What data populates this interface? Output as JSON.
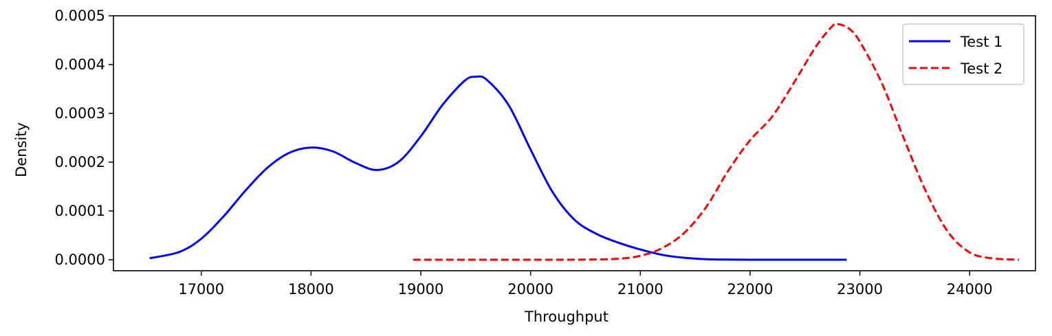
{
  "chart_data": {
    "type": "line",
    "xlabel": "Throughput",
    "ylabel": "Density",
    "xlim": [
      16200,
      24600
    ],
    "ylim": [
      -2.25e-05,
      0.0005
    ],
    "xticks": [
      17000,
      18000,
      19000,
      20000,
      21000,
      22000,
      23000,
      24000
    ],
    "xtick_labels": [
      "17000",
      "18000",
      "19000",
      "20000",
      "21000",
      "22000",
      "23000",
      "24000"
    ],
    "yticks": [
      0.0,
      0.0001,
      0.0002,
      0.0003,
      0.0004,
      0.0005
    ],
    "ytick_labels": [
      "0.0000",
      "0.0001",
      "0.0002",
      "0.0003",
      "0.0004",
      "0.0005"
    ],
    "grid": false,
    "legend_position": "top-right",
    "series": [
      {
        "name": "Test 1",
        "color": "#0000ff",
        "style": "solid",
        "x": [
          16530,
          16800,
          17000,
          17200,
          17400,
          17600,
          17800,
          18000,
          18200,
          18400,
          18600,
          18800,
          19000,
          19200,
          19400,
          19500,
          19600,
          19800,
          20000,
          20200,
          20400,
          20600,
          20800,
          21000,
          21200,
          21400,
          21600,
          21800,
          22000,
          22400,
          22880
        ],
        "y": [
          3e-06,
          1.6e-05,
          4.3e-05,
          8.8e-05,
          0.000141,
          0.000188,
          0.000219,
          0.00023,
          0.000222,
          0.000199,
          0.000184,
          0.000201,
          0.000253,
          0.000318,
          0.000367,
          0.000375,
          0.000369,
          0.000317,
          0.000226,
          0.000139,
          8.2e-05,
          5.3e-05,
          3.5e-05,
          2.1e-05,
          1e-05,
          4e-06,
          1e-06,
          3e-07,
          0.0,
          0.0,
          0.0
        ]
      },
      {
        "name": "Test 2",
        "color": "#ff0000",
        "style": "dashed",
        "x": [
          18930,
          19500,
          20000,
          20500,
          20800,
          21000,
          21200,
          21400,
          21600,
          21800,
          22000,
          22200,
          22400,
          22600,
          22750,
          22800,
          22900,
          23000,
          23200,
          23400,
          23600,
          23800,
          24000,
          24200,
          24450
        ],
        "y": [
          0.0,
          0.0,
          0.0,
          3e-07,
          2e-06,
          8e-06,
          2.4e-05,
          5.5e-05,
          0.000108,
          0.000182,
          0.000245,
          0.000293,
          0.000363,
          0.000437,
          0.000479,
          0.000483,
          0.000474,
          0.000447,
          0.000362,
          0.000249,
          0.000141,
          5.8e-05,
          1.5e-05,
          3e-06,
          0.0
        ]
      }
    ]
  }
}
